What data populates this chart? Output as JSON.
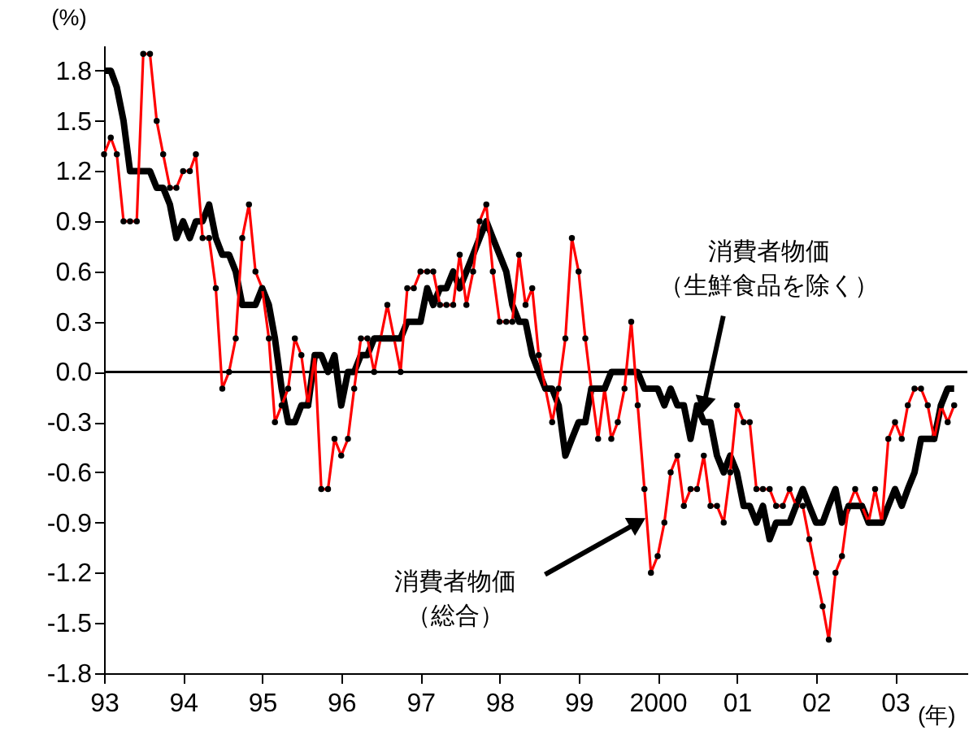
{
  "chart_data": {
    "type": "line",
    "x": [
      "1993-01",
      "1993-02",
      "1993-03",
      "1993-04",
      "1993-05",
      "1993-06",
      "1993-07",
      "1993-08",
      "1993-09",
      "1993-10",
      "1993-11",
      "1993-12",
      "1994-01",
      "1994-02",
      "1994-03",
      "1994-04",
      "1994-05",
      "1994-06",
      "1994-07",
      "1994-08",
      "1994-09",
      "1994-10",
      "1994-11",
      "1994-12",
      "1995-01",
      "1995-02",
      "1995-03",
      "1995-04",
      "1995-05",
      "1995-06",
      "1995-07",
      "1995-08",
      "1995-09",
      "1995-10",
      "1995-11",
      "1995-12",
      "1996-01",
      "1996-02",
      "1996-03",
      "1996-04",
      "1996-05",
      "1996-06",
      "1996-07",
      "1996-08",
      "1996-09",
      "1996-10",
      "1996-11",
      "1996-12",
      "1997-01",
      "1997-02",
      "1997-03",
      "1997-04",
      "1997-05",
      "1997-06",
      "1997-07",
      "1997-08",
      "1997-09",
      "1997-10",
      "1997-11",
      "1997-12",
      "1998-01",
      "1998-02",
      "1998-03",
      "1998-04",
      "1998-05",
      "1998-06",
      "1998-07",
      "1998-08",
      "1998-09",
      "1998-10",
      "1998-11",
      "1998-12",
      "1999-01",
      "1999-02",
      "1999-03",
      "1999-04",
      "1999-05",
      "1999-06",
      "1999-07",
      "1999-08",
      "1999-09",
      "1999-10",
      "1999-11",
      "1999-12",
      "2000-01",
      "2000-02",
      "2000-03",
      "2000-04",
      "2000-05",
      "2000-06",
      "2000-07",
      "2000-08",
      "2000-09",
      "2000-10",
      "2000-11",
      "2000-12",
      "2001-01",
      "2001-02",
      "2001-03",
      "2001-04",
      "2001-05",
      "2001-06",
      "2001-07",
      "2001-08",
      "2001-09",
      "2001-10",
      "2001-11",
      "2001-12",
      "2002-01",
      "2002-02",
      "2002-03",
      "2002-04",
      "2002-05",
      "2002-06",
      "2002-07",
      "2002-08",
      "2002-09",
      "2002-10",
      "2002-11",
      "2002-12",
      "2003-01",
      "2003-02",
      "2003-03",
      "2003-04",
      "2003-05",
      "2003-06",
      "2003-07",
      "2003-08",
      "2003-09",
      "2003-10"
    ],
    "ylabel": "(%)",
    "xlabel": "(年)",
    "xlim": [
      "1993-01",
      "2003-12"
    ],
    "xticks": [
      {
        "value": "1993-01",
        "label": "93"
      },
      {
        "value": "1994-01",
        "label": "94"
      },
      {
        "value": "1995-01",
        "label": "95"
      },
      {
        "value": "1996-01",
        "label": "96"
      },
      {
        "value": "1997-01",
        "label": "97"
      },
      {
        "value": "1998-01",
        "label": "98"
      },
      {
        "value": "1999-01",
        "label": "99"
      },
      {
        "value": "2000-01",
        "label": "2000"
      },
      {
        "value": "2001-01",
        "label": "01"
      },
      {
        "value": "2002-01",
        "label": "02"
      },
      {
        "value": "2003-01",
        "label": "03"
      }
    ],
    "ylim": [
      -1.8,
      1.95
    ],
    "yticks": [
      -1.8,
      -1.5,
      -1.2,
      -0.9,
      -0.6,
      -0.3,
      {
        "value": 0,
        "label": "0.0"
      },
      0.3,
      0.6,
      0.9,
      1.2,
      1.5,
      1.8
    ],
    "grid": false,
    "ref_lines": [
      {
        "axis": "y",
        "value": 0,
        "color": "#000000"
      }
    ],
    "series": [
      {
        "color": "#000000",
        "marker": "none",
        "values": [
          1.8,
          1.8,
          1.7,
          1.5,
          1.2,
          1.2,
          1.2,
          1.2,
          1.1,
          1.1,
          1.0,
          0.8,
          0.9,
          0.8,
          0.9,
          0.9,
          1.0,
          0.8,
          0.7,
          0.7,
          0.6,
          0.4,
          0.4,
          0.4,
          0.5,
          0.4,
          0.2,
          -0.1,
          -0.3,
          -0.3,
          -0.2,
          -0.2,
          0.1,
          0.1,
          0.0,
          0.1,
          -0.2,
          0.0,
          0.0,
          0.1,
          0.1,
          0.2,
          0.2,
          0.2,
          0.2,
          0.2,
          0.3,
          0.3,
          0.3,
          0.5,
          0.4,
          0.5,
          0.5,
          0.6,
          0.5,
          0.6,
          0.7,
          0.8,
          0.9,
          0.8,
          0.7,
          0.6,
          0.4,
          0.3,
          0.3,
          0.1,
          0.0,
          -0.1,
          -0.1,
          -0.2,
          -0.5,
          -0.4,
          -0.3,
          -0.3,
          -0.1,
          -0.1,
          -0.1,
          0.0,
          0.0,
          0.0,
          0.0,
          0.0,
          -0.1,
          -0.1,
          -0.1,
          -0.2,
          -0.1,
          -0.2,
          -0.2,
          -0.4,
          -0.2,
          -0.3,
          -0.3,
          -0.5,
          -0.6,
          -0.5,
          -0.6,
          -0.8,
          -0.8,
          -0.9,
          -0.8,
          -1.0,
          -0.9,
          -0.9,
          -0.9,
          -0.8,
          -0.7,
          -0.8,
          -0.9,
          -0.9,
          -0.8,
          -0.7,
          -0.9,
          -0.8,
          -0.8,
          -0.8,
          -0.9,
          -0.9,
          -0.9,
          -0.8,
          -0.7,
          -0.8,
          -0.7,
          -0.6,
          -0.4,
          -0.4,
          -0.4,
          -0.2,
          -0.1,
          -0.1
        ]
      },
      {
        "color": "#ff0000",
        "marker": "circle",
        "values": [
          1.3,
          1.4,
          1.3,
          0.9,
          0.9,
          0.9,
          1.9,
          1.9,
          1.5,
          1.3,
          1.1,
          1.1,
          1.2,
          1.2,
          1.3,
          0.8,
          0.8,
          0.5,
          -0.1,
          0.0,
          0.2,
          0.8,
          1.0,
          0.6,
          0.5,
          0.2,
          -0.3,
          -0.2,
          -0.1,
          0.2,
          0.1,
          -0.2,
          0.1,
          -0.7,
          -0.7,
          -0.4,
          -0.5,
          -0.4,
          -0.1,
          0.2,
          0.2,
          0.0,
          0.2,
          0.4,
          0.2,
          0.0,
          0.5,
          0.5,
          0.6,
          0.6,
          0.6,
          0.4,
          0.4,
          0.4,
          0.7,
          0.4,
          0.6,
          0.9,
          1.0,
          0.6,
          0.3,
          0.3,
          0.3,
          0.7,
          0.4,
          0.5,
          0.1,
          -0.1,
          -0.3,
          -0.1,
          0.2,
          0.8,
          0.6,
          0.2,
          -0.1,
          -0.4,
          -0.1,
          -0.4,
          -0.3,
          -0.1,
          0.3,
          -0.2,
          -0.7,
          -1.2,
          -1.1,
          -0.9,
          -0.6,
          -0.5,
          -0.8,
          -0.7,
          -0.7,
          -0.5,
          -0.8,
          -0.8,
          -0.9,
          -0.6,
          -0.2,
          -0.3,
          -0.3,
          -0.7,
          -0.7,
          -0.7,
          -0.8,
          -0.8,
          -0.7,
          -0.8,
          -0.8,
          -1.0,
          -1.2,
          -1.4,
          -1.6,
          -1.2,
          -1.1,
          -0.8,
          -0.7,
          -0.8,
          -0.9,
          -0.7,
          -0.9,
          -0.4,
          -0.3,
          -0.4,
          -0.2,
          -0.1,
          -0.1,
          -0.2,
          -0.4,
          -0.2,
          -0.3,
          -0.2
        ]
      }
    ],
    "annotations": [
      {
        "text": "消費者物価（生鮮食品を除く）",
        "x": "2000-08",
        "y": -0.2
      },
      {
        "text": "消費者物価（総合）",
        "x": "1999-10",
        "y": -0.9
      }
    ]
  }
}
